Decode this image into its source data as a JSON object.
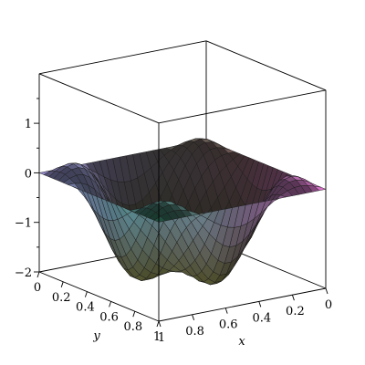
{
  "chart_data": {
    "type": "surface",
    "function": "z(x, y) = -2·sin(πx)·sin(πy) + 0.6·sin(3πx)·sin(3πy)",
    "xlim": [
      0,
      1
    ],
    "ylim": [
      0,
      1
    ],
    "zlim": [
      -2,
      2
    ],
    "x_ticks": [
      "1",
      "0.8",
      "0.6",
      "0.4",
      "0.2",
      "0"
    ],
    "y_ticks": [
      "0",
      "0.2",
      "0.4",
      "0.6",
      "0.8",
      "1"
    ],
    "z_ticks": [
      "1",
      "0",
      "−1",
      "−2"
    ],
    "xlabel": "x",
    "ylabel": "y",
    "grid_lines": 26,
    "colors": {
      "corner_00": "#e878d8",
      "corner_x1": "#2f7d5e",
      "corner_y1": "#5a5a38",
      "corner_11": "#a79be8",
      "center_low": "#4d4e2a",
      "peak_highlight": "#f4f2ff"
    }
  }
}
